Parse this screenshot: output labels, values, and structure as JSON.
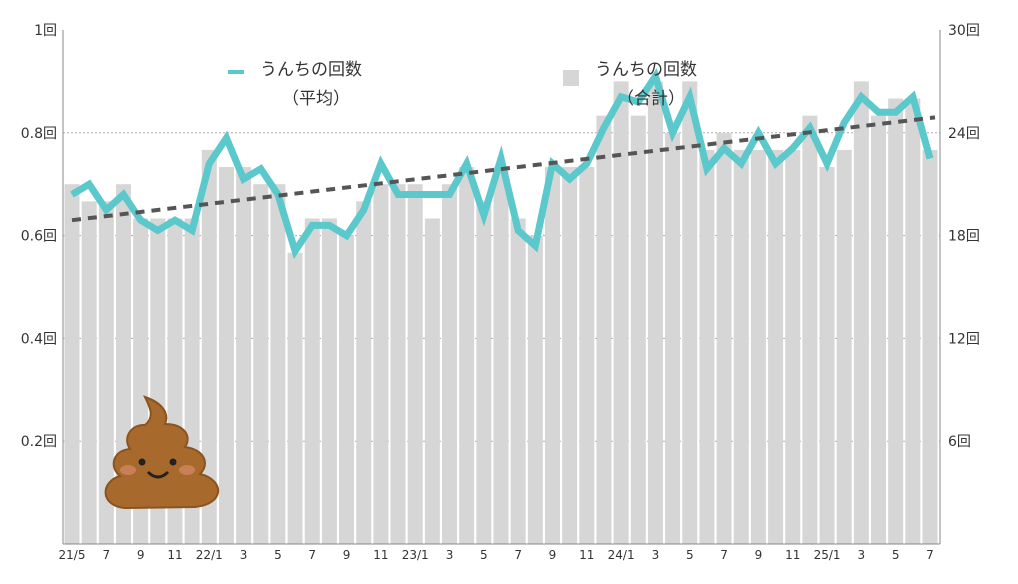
{
  "chart_data": {
    "type": "bar+line",
    "categories": [
      "21/5",
      "6",
      "7",
      "8",
      "9",
      "10",
      "11",
      "12",
      "22/1",
      "2",
      "3",
      "4",
      "5",
      "6",
      "7",
      "8",
      "9",
      "10",
      "11",
      "12",
      "23/1",
      "2",
      "3",
      "4",
      "5",
      "6",
      "7",
      "8",
      "9",
      "10",
      "11",
      "12",
      "24/1",
      "2",
      "3",
      "4",
      "5",
      "6",
      "7",
      "8",
      "9",
      "10",
      "11",
      "12",
      "25/1",
      "2",
      "3",
      "4",
      "5",
      "6",
      "7"
    ],
    "x_tick_labels": [
      "21/5",
      "7",
      "9",
      "11",
      "22/1",
      "3",
      "5",
      "7",
      "9",
      "11",
      "23/1",
      "3",
      "5",
      "7",
      "9",
      "11",
      "24/1",
      "3",
      "5",
      "7",
      "9",
      "11",
      "25/1",
      "3",
      "5",
      "7"
    ],
    "series": [
      {
        "name": "うんちの回数（合計）",
        "type": "bar",
        "axis": "right",
        "color": "#d6d6d6",
        "values": [
          21,
          20,
          20,
          21,
          19,
          19,
          19,
          19,
          23,
          22,
          22,
          21,
          21,
          17,
          19,
          19,
          18,
          20,
          21,
          21,
          21,
          19,
          21,
          22,
          20,
          22,
          19,
          18,
          22,
          22,
          22,
          25,
          27,
          25,
          27,
          24,
          27,
          23,
          24,
          23,
          23,
          23,
          23,
          25,
          22,
          23,
          27,
          25,
          26,
          26,
          23
        ]
      },
      {
        "name": "うんちの回数（平均）",
        "type": "line",
        "axis": "left",
        "color": "#5bc8cc",
        "values": [
          0.68,
          0.7,
          0.65,
          0.68,
          0.63,
          0.61,
          0.63,
          0.61,
          0.74,
          0.79,
          0.71,
          0.73,
          0.68,
          0.57,
          0.62,
          0.62,
          0.6,
          0.65,
          0.74,
          0.68,
          0.68,
          0.68,
          0.68,
          0.74,
          0.64,
          0.75,
          0.61,
          0.58,
          0.74,
          0.71,
          0.74,
          0.81,
          0.87,
          0.86,
          0.91,
          0.8,
          0.87,
          0.73,
          0.77,
          0.74,
          0.8,
          0.74,
          0.77,
          0.81,
          0.74,
          0.82,
          0.87,
          0.84,
          0.84,
          0.87,
          0.75
        ]
      }
    ],
    "trendline": {
      "series": "うんちの回数（平均）",
      "style": "dashed",
      "color": "#555555",
      "start": 0.63,
      "end": 0.83
    },
    "left_axis": {
      "range": [
        0,
        1
      ],
      "ticks": [
        "0.2回",
        "0.4回",
        "0.6回",
        "0.8回",
        "1回"
      ],
      "tick_values": [
        0.2,
        0.4,
        0.6,
        0.8,
        1
      ]
    },
    "right_axis": {
      "range": [
        0,
        30
      ],
      "ticks": [
        "6回",
        "12回",
        "18回",
        "24回",
        "30回"
      ],
      "tick_values": [
        6,
        12,
        18,
        24,
        30
      ]
    },
    "grid": true,
    "legend": {
      "placement": "top",
      "line_label": "うんちの回数",
      "line_sub": "（平均）",
      "bar_label": "うんちの回数",
      "bar_sub": "（合計）"
    }
  },
  "illustration": "poop-icon"
}
